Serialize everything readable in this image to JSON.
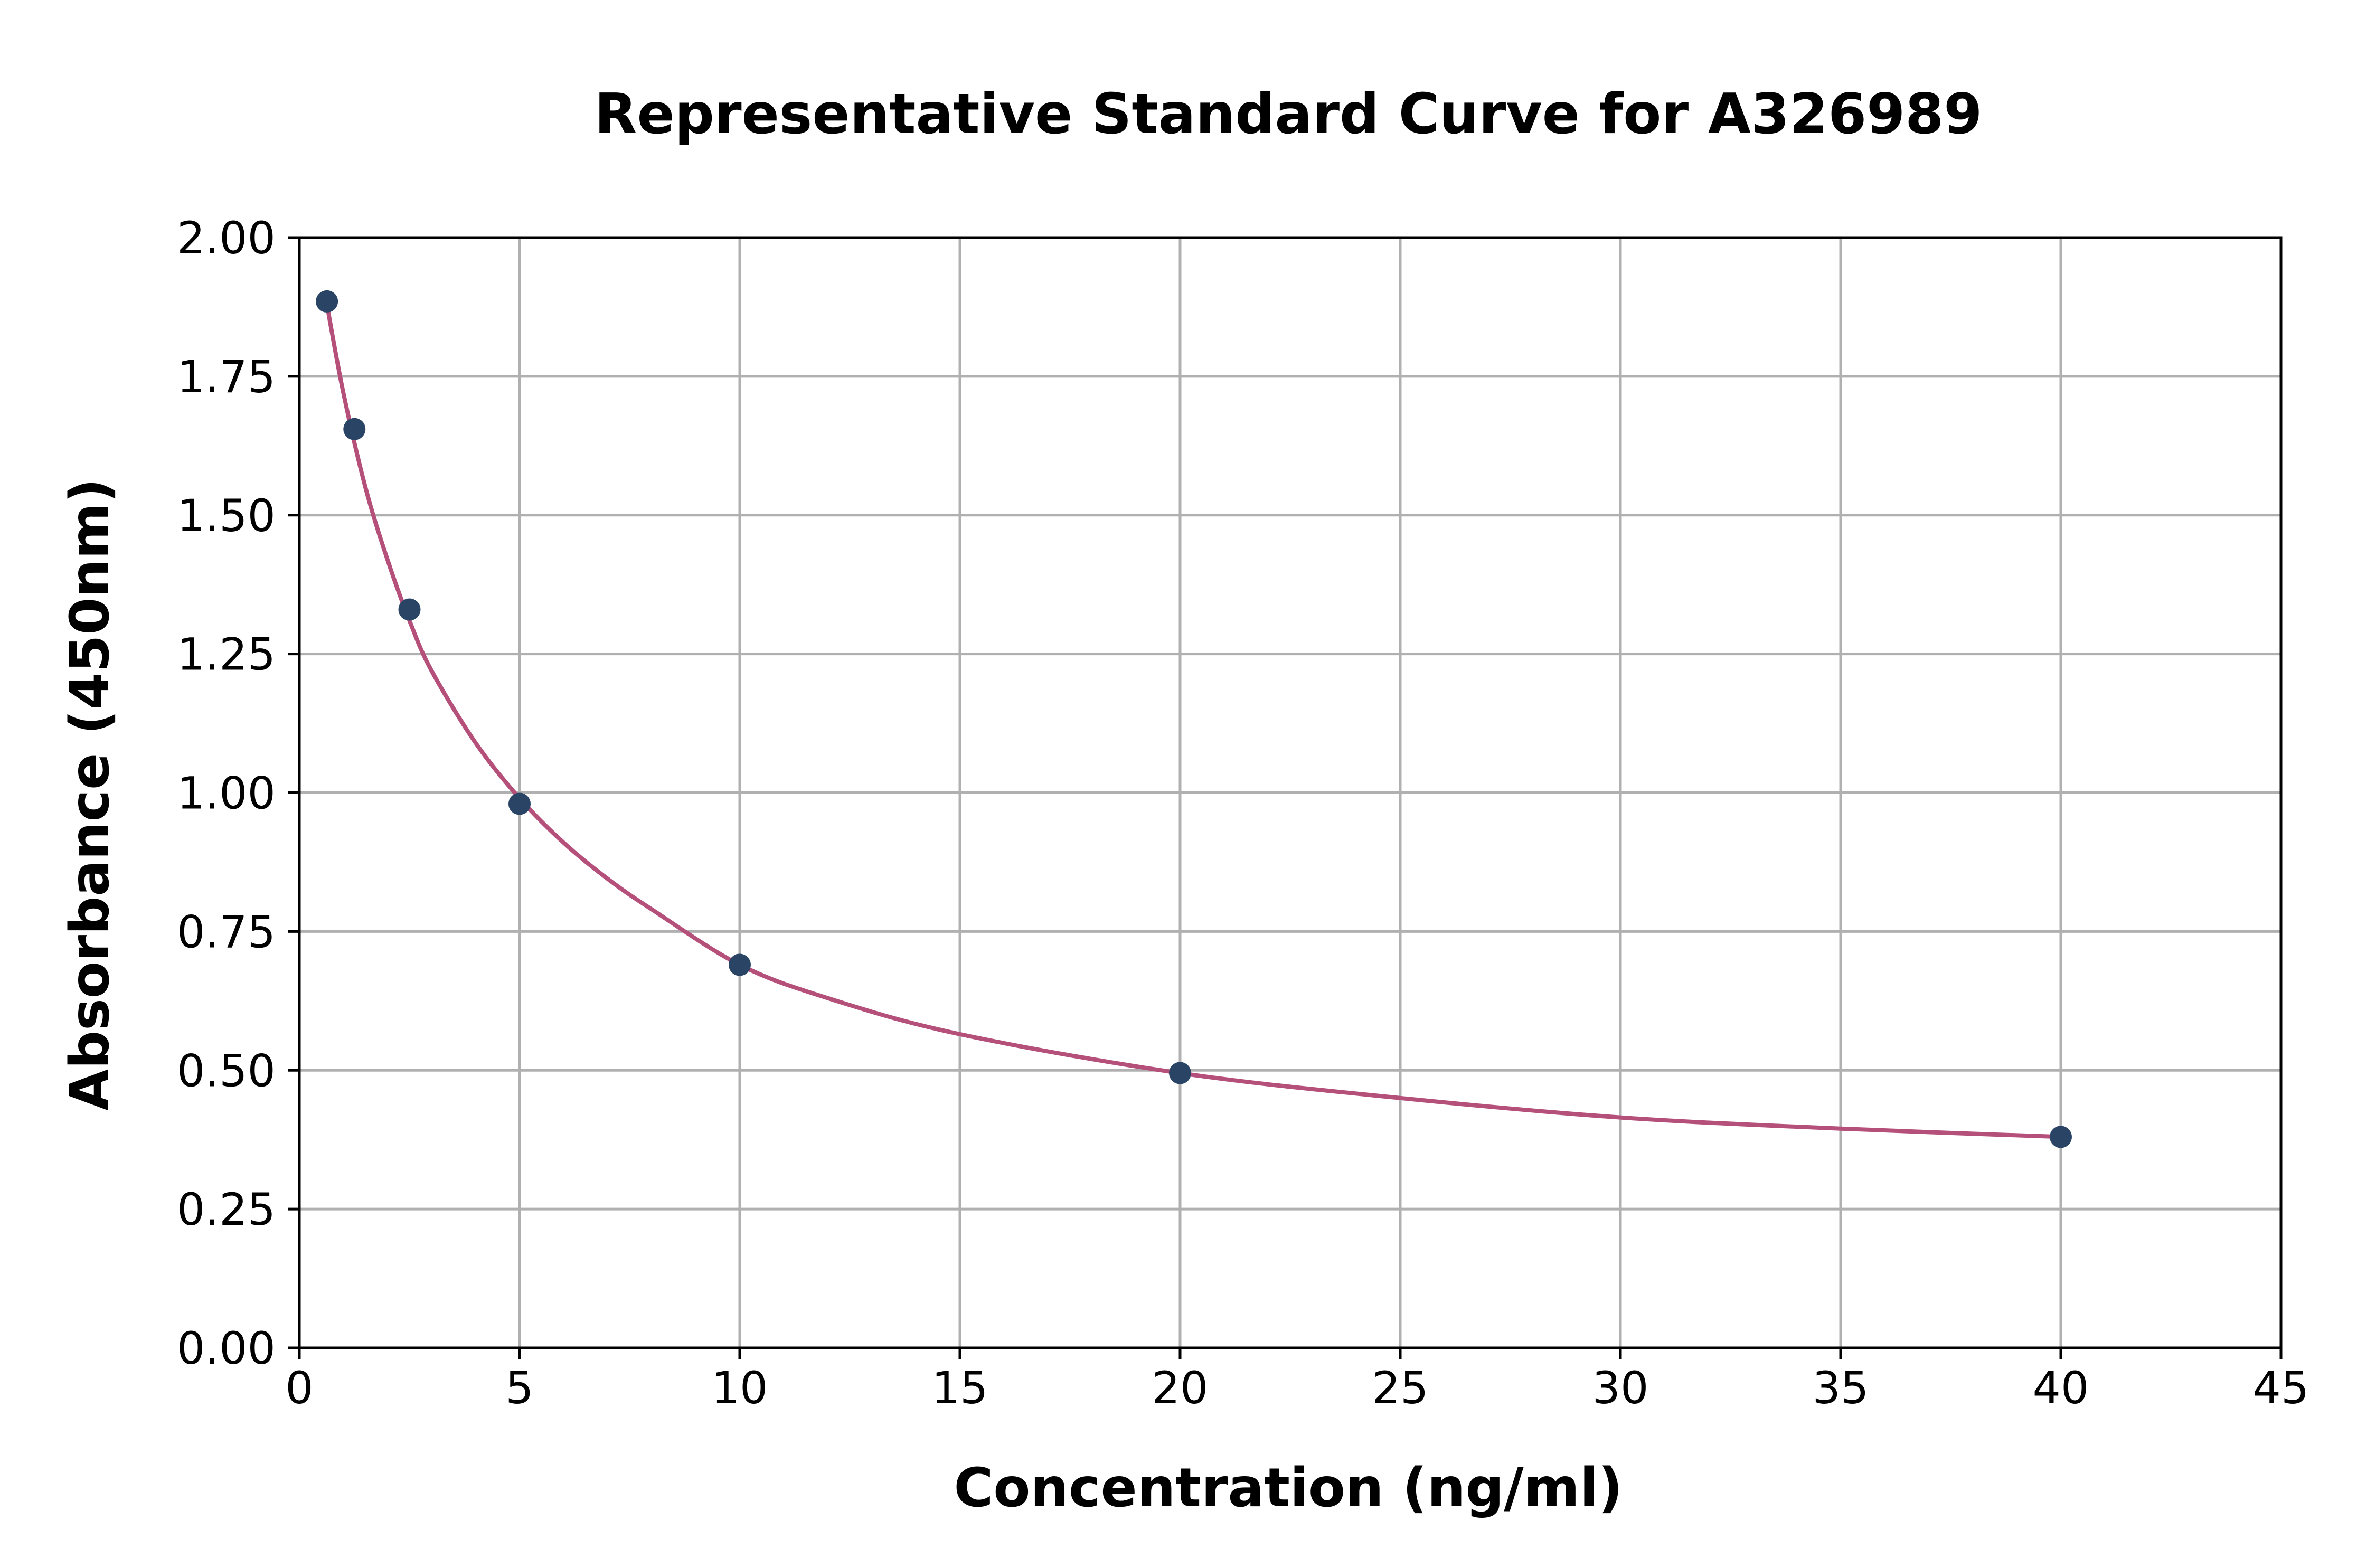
{
  "chart_data": {
    "type": "scatter",
    "title": "Representative Standard Curve for A326989",
    "xlabel": "Concentration (ng/ml)",
    "ylabel": "Absorbance (450nm)",
    "xlim": [
      0,
      45
    ],
    "ylim": [
      0,
      2
    ],
    "xticks": [
      "0",
      "5",
      "10",
      "15",
      "20",
      "25",
      "30",
      "35",
      "40",
      "45"
    ],
    "yticks": [
      "0.00",
      "0.25",
      "0.50",
      "0.75",
      "1.00",
      "1.25",
      "1.50",
      "1.75",
      "2.00"
    ],
    "grid": true,
    "series": [
      {
        "kind": "points",
        "x": [
          0.625,
          1.25,
          2.5,
          5,
          10,
          20,
          40
        ],
        "y": [
          1.885,
          1.655,
          1.33,
          0.98,
          0.69,
          0.495,
          0.38
        ],
        "color": "#2a4466"
      },
      {
        "kind": "fit-curve",
        "x": [
          0.625,
          1.0,
          1.5,
          2.0,
          2.5,
          3.0,
          4.0,
          5.0,
          6.0,
          7.0,
          8.0,
          10.0,
          12.0,
          15.0,
          20.0,
          25.0,
          30.0,
          35.0,
          40.0
        ],
        "y": [
          1.88,
          1.72,
          1.55,
          1.42,
          1.31,
          1.22,
          1.09,
          0.99,
          0.91,
          0.845,
          0.79,
          0.69,
          0.63,
          0.565,
          0.495,
          0.45,
          0.415,
          0.395,
          0.38
        ],
        "color": "#b5507a"
      }
    ]
  }
}
